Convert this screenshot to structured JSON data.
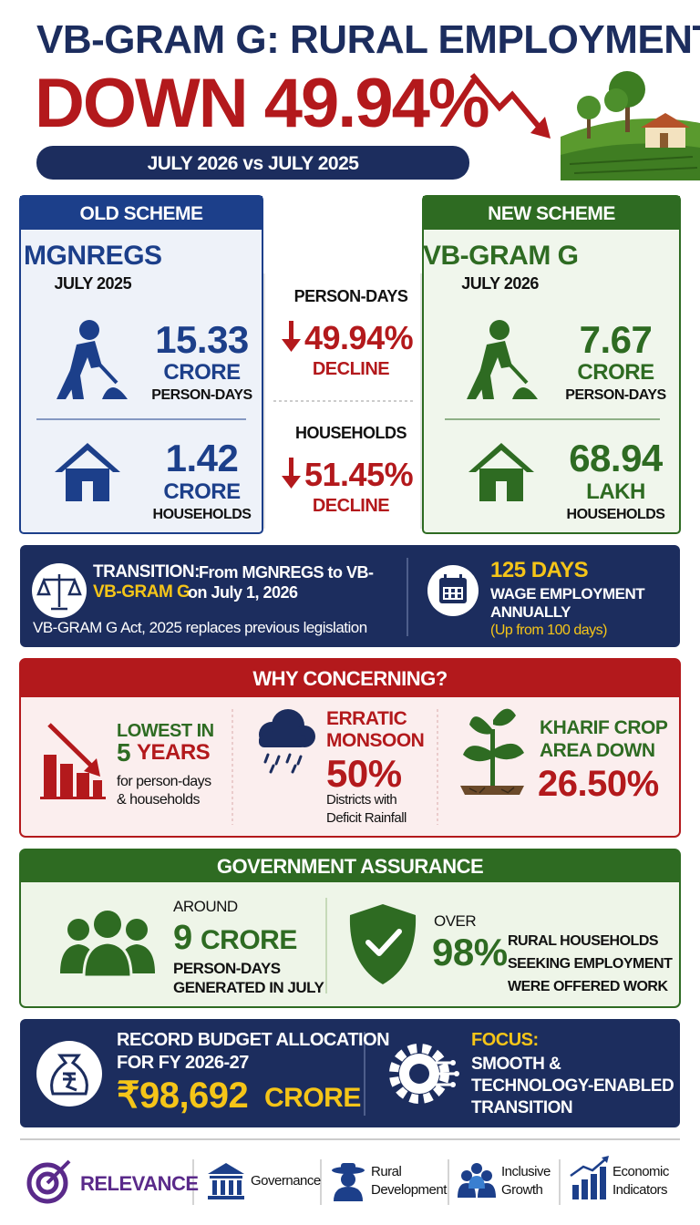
{
  "header": {
    "title": "VB-GRAM G: RURAL EMPLOYMENT",
    "headline": "DOWN 49.94%",
    "period": "JULY 2026 vs JULY 2025"
  },
  "old_scheme": {
    "tag": "OLD SCHEME",
    "name": "MGNREGS",
    "month": "JULY 2025",
    "person_days": {
      "value": "15.33",
      "unit": "CRORE",
      "label": "PERSON-DAYS"
    },
    "households": {
      "value": "1.42",
      "unit": "CRORE",
      "label": "HOUSEHOLDS"
    }
  },
  "change": {
    "person_days": {
      "label": "PERSON-DAYS",
      "value": "49.94%",
      "note": "DECLINE"
    },
    "households": {
      "label": "HOUSEHOLDS",
      "value": "51.45%",
      "note": "DECLINE"
    }
  },
  "new_scheme": {
    "tag": "NEW SCHEME",
    "name": "VB-GRAM G",
    "month": "JULY 2026",
    "person_days": {
      "value": "7.67",
      "unit": "CRORE",
      "label": "PERSON-DAYS"
    },
    "households": {
      "value": "68.94",
      "unit": "LAKH",
      "label": "HOUSEHOLDS"
    }
  },
  "transition": {
    "label": "TRANSITION:",
    "line1": "From MGNREGS to VB-",
    "highlight": "VB-GRAM G",
    "line2": "on July 1, 2026",
    "note": "VB-GRAM G Act, 2025 replaces previous legislation",
    "days": "125 DAYS",
    "days_lines": [
      "WAGE EMPLOYMENT",
      "ANNUALLY"
    ],
    "days_note": "(Up from 100 days)"
  },
  "concerns": {
    "title": "WHY CONCERNING?",
    "items": [
      {
        "lines": [
          "LOWEST IN"
        ],
        "figure": "5",
        "figure_unit": "YEARS",
        "notes": [
          "for person-days",
          "& households"
        ]
      },
      {
        "lines": [
          "ERRATIC",
          "MONSOON"
        ],
        "figure": "50%",
        "notes": [
          "Districts with",
          "Deficit Rainfall"
        ]
      },
      {
        "lines": [
          "KHARIF CROP",
          "AREA DOWN"
        ],
        "figure": "26.50%"
      }
    ]
  },
  "assurance": {
    "title": "GOVERNMENT ASSURANCE",
    "items": [
      {
        "prefix": "AROUND",
        "figure": "9",
        "figure_unit": "CRORE",
        "notes": [
          "PERSON-DAYS",
          "GENERATED IN JULY"
        ]
      },
      {
        "prefix": "OVER",
        "figure": "98%",
        "notes": [
          "RURAL HOUSEHOLDS",
          "SEEKING EMPLOYMENT",
          "WERE OFFERED WORK"
        ]
      }
    ]
  },
  "budget": {
    "lines": [
      "RECORD BUDGET ALLOCATION",
      "FOR FY 2026-27"
    ],
    "amount": "₹98,692",
    "unit": "CRORE",
    "focus_label": "FOCUS:",
    "focus_lines": [
      "SMOOTH &",
      "TECHNOLOGY-ENABLED",
      "TRANSITION"
    ]
  },
  "footer": {
    "label": "RELEVANCE",
    "tags": [
      {
        "lines": [
          "Governance"
        ]
      },
      {
        "lines": [
          "Rural",
          "Development"
        ]
      },
      {
        "lines": [
          "Inclusive",
          "Growth"
        ]
      },
      {
        "lines": [
          "Economic",
          "Indicators"
        ]
      }
    ]
  }
}
